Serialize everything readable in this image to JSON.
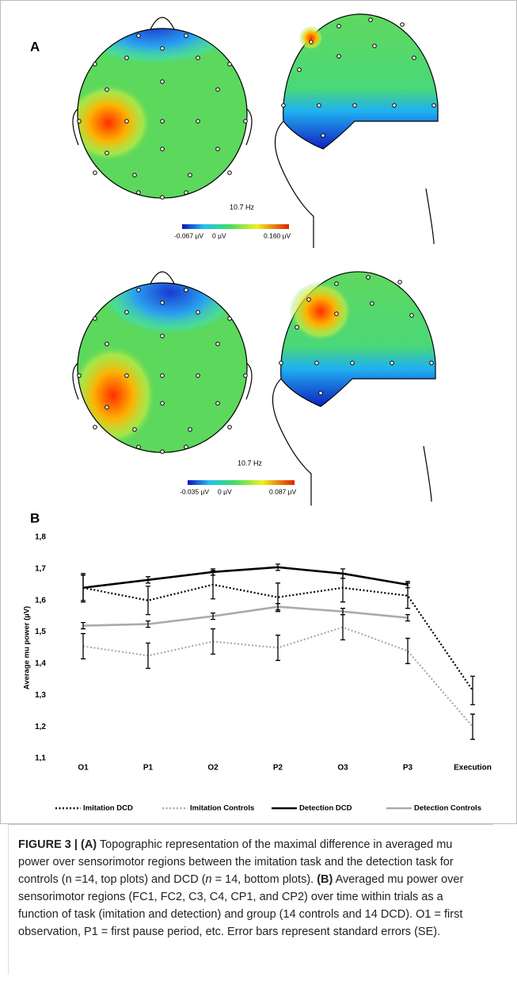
{
  "panel_a": {
    "label": "A",
    "maps": [
      {
        "frequency": "10.7 Hz",
        "scale_labels": [
          "-0.067 µV",
          "0 µV",
          "0.160 µV"
        ]
      },
      {
        "frequency": "10.7 Hz",
        "scale_labels": [
          "-0.035 µV",
          "0 µV",
          "0.087 µV"
        ]
      }
    ]
  },
  "chart_data": {
    "type": "line",
    "panel_label": "B",
    "y_label": "Average mu power (µV)",
    "categories": [
      "O1",
      "P1",
      "O2",
      "P2",
      "O3",
      "P3",
      "Execution"
    ],
    "ylim": [
      1.1,
      1.8
    ],
    "yticks": [
      {
        "value": 1.1,
        "label": "1,1"
      },
      {
        "value": 1.2,
        "label": "1,2"
      },
      {
        "value": 1.3,
        "label": "1,3"
      },
      {
        "value": 1.4,
        "label": "1,4"
      },
      {
        "value": 1.5,
        "label": "1,5"
      },
      {
        "value": 1.6,
        "label": "1,6"
      },
      {
        "value": 1.7,
        "label": "1,7"
      },
      {
        "value": 1.8,
        "label": "1,8"
      }
    ],
    "series": [
      {
        "name": "Imitation DCD",
        "color": "#000000",
        "dash": "dotted",
        "values": [
          1.64,
          1.6,
          1.65,
          1.61,
          1.64,
          1.615,
          1.315
        ],
        "errors": [
          0.04,
          0.045,
          0.045,
          0.045,
          0.045,
          0.04,
          0.045
        ]
      },
      {
        "name": "Imitation Controls",
        "color": "#aaaaaa",
        "dash": "dotted",
        "values": [
          1.455,
          1.425,
          1.47,
          1.45,
          1.515,
          1.44,
          1.2
        ],
        "errors": [
          0.04,
          0.04,
          0.04,
          0.04,
          0.04,
          0.04,
          0.04
        ]
      },
      {
        "name": "Detection DCD",
        "color": "#000000",
        "dash": "solid",
        "values": [
          1.64,
          1.665,
          1.69,
          1.705,
          1.685,
          1.65,
          null
        ],
        "errors": [
          0.045,
          0.01,
          0.01,
          0.01,
          0.015,
          0.01,
          null
        ]
      },
      {
        "name": "Detection Controls",
        "color": "#aaaaaa",
        "dash": "solid",
        "values": [
          1.52,
          1.525,
          1.55,
          1.58,
          1.565,
          1.545,
          null
        ],
        "errors": [
          0.01,
          0.01,
          0.01,
          0.01,
          0.01,
          0.01,
          null
        ]
      }
    ]
  },
  "caption": {
    "segments": [
      {
        "text": "FIGURE 3 | (A)",
        "style": "bold"
      },
      {
        "text": " Topographic representation of the maximal difference in averaged mu power over sensorimotor regions between the imitation task and the detection task for controls (n =14, top plots) and DCD (",
        "style": "normal"
      },
      {
        "text": "n",
        "style": "italic"
      },
      {
        "text": " = 14, bottom plots). ",
        "style": "normal"
      },
      {
        "text": "(B)",
        "style": "bold"
      },
      {
        "text": " Averaged mu power over sensorimotor regions (FC1, FC2, C3, C4, CP1, and CP2) over time within trials as a function of task (imitation and detection) and group (14 controls and 14 DCD). O1 = first observation, P1 = first pause period, etc. Error bars represent standard errors (SE).",
        "style": "normal"
      }
    ]
  }
}
